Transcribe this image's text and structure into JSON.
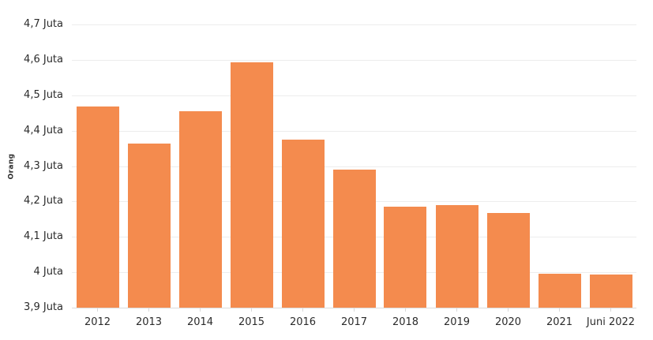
{
  "chart": {
    "background": "#ffffff",
    "bar_color": "#f48b4e",
    "gridline_color": "#ededed",
    "baseline_color": "#dcdcdc",
    "tick_color": "#d9d9d9",
    "text_color": "#2b2b2b",
    "yticks": [
      {
        "value": 4.7,
        "label": "4,7 Juta"
      },
      {
        "value": 4.6,
        "label": "4,6 Juta"
      },
      {
        "value": 4.5,
        "label": "4,5 Juta"
      },
      {
        "value": 4.4,
        "label": "4,4 Juta"
      },
      {
        "value": 4.3,
        "label": "4,3 Juta"
      },
      {
        "value": 4.2,
        "label": "4,2 Juta"
      },
      {
        "value": 4.1,
        "label": "4,1 Juta"
      },
      {
        "value": 4.0,
        "label": "4 Juta"
      },
      {
        "value": 3.9,
        "label": "3,9 Juta"
      }
    ]
  },
  "chart_data": {
    "type": "bar",
    "title": "",
    "xlabel": "",
    "ylabel": "Orang",
    "unit": "Juta Orang",
    "categories": [
      "2012",
      "2013",
      "2014",
      "2015",
      "2016",
      "2017",
      "2018",
      "2019",
      "2020",
      "2021",
      "Juni 2022"
    ],
    "values": [
      4.468,
      4.363,
      4.455,
      4.594,
      4.374,
      4.289,
      4.186,
      4.189,
      4.168,
      3.996,
      3.993
    ],
    "ylim": [
      3.9,
      4.7
    ],
    "ytick_step": 0.1,
    "grid": true,
    "legend_position": "none"
  }
}
